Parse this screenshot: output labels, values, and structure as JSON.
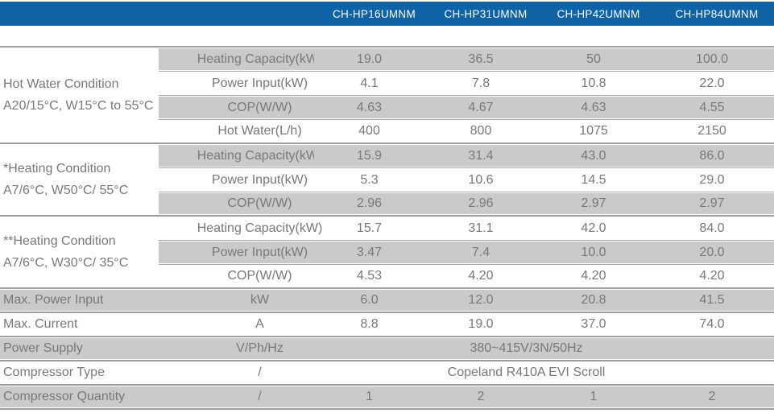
{
  "header": {
    "models": [
      "CH-HP16UMNM",
      "CH-HP31UMNM",
      "CH-HP42UMNM",
      "CH-HP84UMNM"
    ]
  },
  "groups": [
    {
      "label1": "Hot Water Condition",
      "label2": "A20/15°C, W15°C to 55°C",
      "rows": [
        {
          "param": "Heating Capacity(kW)",
          "values": [
            "19.0",
            "36.5",
            "50",
            "100.0"
          ]
        },
        {
          "param": "Power Input(kW)",
          "values": [
            "4.1",
            "7.8",
            "10.8",
            "22.0"
          ]
        },
        {
          "param": "COP(W/W)",
          "values": [
            "4.63",
            "4.67",
            "4.63",
            "4.55"
          ]
        },
        {
          "param": "Hot Water(L/h)",
          "values": [
            "400",
            "800",
            "1075",
            "2150"
          ]
        }
      ]
    },
    {
      "label1": "*Heating Condition",
      "label2": "A7/6°C, W50°C/ 55°C",
      "rows": [
        {
          "param": "Heating Capacity(kW)",
          "values": [
            "15.9",
            "31.4",
            "43.0",
            "86.0"
          ]
        },
        {
          "param": "Power Input(kW)",
          "values": [
            "5.3",
            "10.6",
            "14.5",
            "29.0"
          ]
        },
        {
          "param": "COP(W/W)",
          "values": [
            "2.96",
            "2.96",
            "2.97",
            "2.97"
          ]
        }
      ]
    },
    {
      "label1": "**Heating Condition",
      "label2": "A7/6°C, W30°C/ 35°C",
      "rows": [
        {
          "param": "Heating Capacity(kW)",
          "values": [
            "15.7",
            "31.1",
            "42.0",
            "84.0"
          ]
        },
        {
          "param": "Power Input(kW)",
          "values": [
            "3.47",
            "7.4",
            "10.0",
            "20.0"
          ]
        },
        {
          "param": "COP(W/W)",
          "values": [
            "4.53",
            "4.20",
            "4.20",
            "4.20"
          ]
        }
      ]
    }
  ],
  "bottom": [
    {
      "label": "Max. Power Input",
      "unit": "kW",
      "values": [
        "6.0",
        "12.0",
        "20.8",
        "41.5"
      ]
    },
    {
      "label": "Max. Current",
      "unit": "A",
      "values": [
        "8.8",
        "19.0",
        "37.0",
        "74.0"
      ]
    },
    {
      "label": "Power Supply",
      "unit": "V/Ph/Hz",
      "span_value": "380~415V/3N/50Hz"
    },
    {
      "label": "Compressor Type",
      "unit": "/",
      "span_value": "Copeland R410A EVI Scroll"
    },
    {
      "label": "Compressor Quantity",
      "unit": "/",
      "values": [
        "1",
        "2",
        "1",
        "2"
      ]
    }
  ],
  "colors": {
    "header_bar": "#0d63a6",
    "header_text": "#ffffff",
    "shaded_row": "#cacac8",
    "separator_line": "#9b9b99",
    "body_text": "#787876"
  }
}
